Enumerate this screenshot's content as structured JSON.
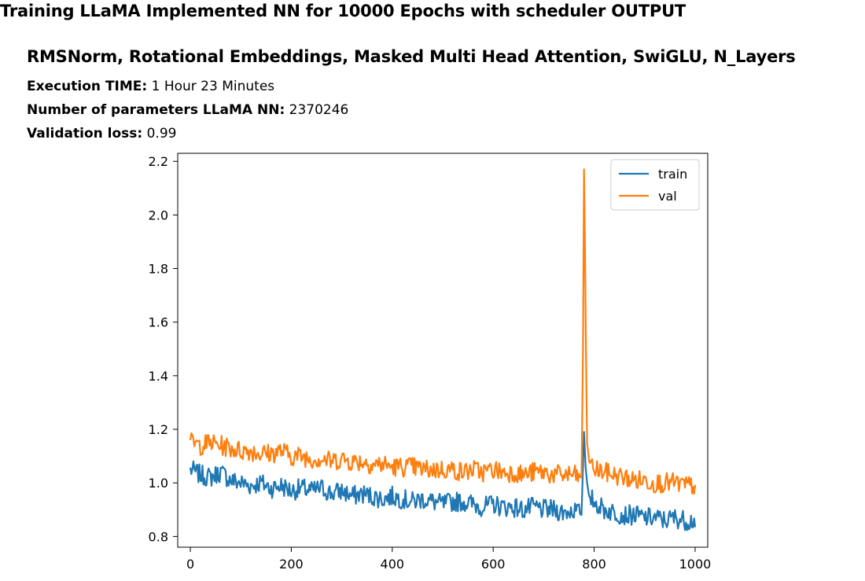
{
  "header": {
    "title": "Training LLaMA Implemented NN for 10000 Epochs with scheduler OUTPUT",
    "subtitle": "RMSNorm, Rotational Embeddings, Masked Multi Head Attention, SwiGLU, N_Layers"
  },
  "info": {
    "exec_label": "Execution TIME:",
    "exec_value": "1 Hour 23  Minutes",
    "params_label": "Number of parameters LLaMA NN:",
    "params_value": "2370246",
    "val_label": "Validation loss:",
    "val_value": "0.99"
  },
  "chart_data": {
    "type": "line",
    "xlim": [
      -25,
      1025
    ],
    "ylim": [
      0.76,
      2.23
    ],
    "xticks": [
      0,
      200,
      400,
      600,
      800,
      1000
    ],
    "yticks": [
      0.8,
      1.0,
      1.2,
      1.4,
      1.6,
      1.8,
      2.0,
      2.2
    ],
    "legend_position": "top-right",
    "series": [
      {
        "name": "train",
        "color": "#1f77b4",
        "x": [
          0,
          20,
          40,
          60,
          80,
          100,
          120,
          140,
          160,
          180,
          200,
          220,
          240,
          260,
          280,
          300,
          320,
          340,
          360,
          380,
          400,
          420,
          440,
          460,
          480,
          500,
          520,
          540,
          560,
          580,
          600,
          620,
          640,
          660,
          680,
          700,
          720,
          740,
          760,
          775,
          780,
          783,
          786,
          790,
          800,
          820,
          840,
          860,
          880,
          900,
          920,
          940,
          960,
          980,
          1000
        ],
        "y": [
          1.05,
          1.03,
          1.02,
          1.04,
          1.01,
          1.0,
          0.99,
          1.0,
          0.98,
          0.99,
          0.97,
          0.98,
          0.97,
          0.98,
          0.96,
          0.97,
          0.95,
          0.96,
          0.95,
          0.94,
          0.95,
          0.94,
          0.93,
          0.94,
          0.93,
          0.92,
          0.93,
          0.93,
          0.92,
          0.91,
          0.92,
          0.91,
          0.91,
          0.9,
          0.91,
          0.9,
          0.9,
          0.89,
          0.9,
          0.88,
          1.19,
          1.06,
          1.0,
          0.95,
          0.93,
          0.9,
          0.89,
          0.88,
          0.88,
          0.87,
          0.87,
          0.86,
          0.87,
          0.86,
          0.86
        ]
      },
      {
        "name": "val",
        "color": "#ff7f0e",
        "x": [
          0,
          20,
          40,
          60,
          80,
          100,
          120,
          140,
          160,
          180,
          200,
          220,
          240,
          260,
          280,
          300,
          320,
          340,
          360,
          380,
          400,
          420,
          440,
          460,
          480,
          500,
          520,
          540,
          560,
          580,
          600,
          620,
          640,
          660,
          680,
          700,
          720,
          740,
          760,
          775,
          778,
          780,
          782,
          784,
          786,
          790,
          800,
          820,
          840,
          860,
          880,
          900,
          920,
          940,
          960,
          980,
          1000
        ],
        "y": [
          1.15,
          1.14,
          1.15,
          1.14,
          1.13,
          1.12,
          1.12,
          1.11,
          1.11,
          1.12,
          1.1,
          1.1,
          1.09,
          1.09,
          1.08,
          1.09,
          1.08,
          1.08,
          1.07,
          1.07,
          1.06,
          1.06,
          1.06,
          1.05,
          1.05,
          1.05,
          1.05,
          1.04,
          1.05,
          1.04,
          1.05,
          1.04,
          1.04,
          1.03,
          1.04,
          1.04,
          1.03,
          1.03,
          1.03,
          1.02,
          1.5,
          2.17,
          1.85,
          1.46,
          1.15,
          1.08,
          1.05,
          1.04,
          1.03,
          1.02,
          1.01,
          1.01,
          1.0,
          1.0,
          1.0,
          0.99,
          0.99
        ]
      }
    ]
  }
}
